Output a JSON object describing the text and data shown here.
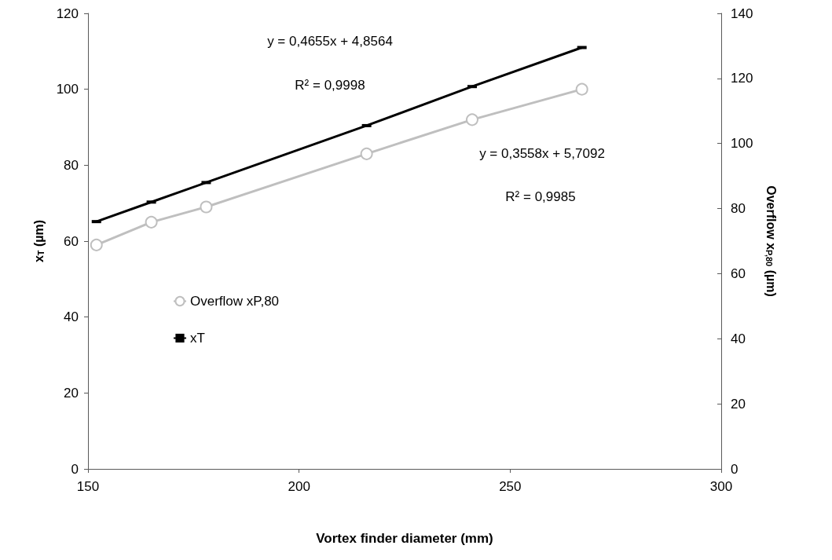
{
  "chart_data": {
    "type": "line",
    "xlabel": "Vortex finder diameter (mm)",
    "ylabel": "x$_{T}$ (µm)",
    "y2label": "Overflow x$_{P,80}$ (µm)",
    "x": [
      152,
      165,
      178,
      216,
      241,
      267
    ],
    "series": [
      {
        "name": "Overflow xP,80",
        "color": "#bfbfbf",
        "marker": "circle",
        "values": [
          59,
          65,
          69,
          83,
          92,
          100
        ]
      },
      {
        "name": "xT",
        "color": "#000000",
        "marker": "square",
        "axis": "y2",
        "values": [
          76,
          82,
          88,
          105.5,
          117.5,
          129.5
        ]
      }
    ],
    "xlim": [
      150,
      300
    ],
    "xticks": [
      150,
      200,
      250,
      300
    ],
    "ylim": [
      0,
      120
    ],
    "yticks": [
      0,
      20,
      40,
      60,
      80,
      100,
      120
    ],
    "y2lim": [
      0,
      140
    ],
    "y2ticks": [
      0,
      20,
      40,
      60,
      80,
      100,
      120,
      140
    ],
    "legend": "left",
    "grid": false,
    "annotations": [
      "y = 0,4655x + 4,8564",
      "R² = 0,9998",
      "y = 0,3558x + 5,7092",
      "R² = 0,9985"
    ]
  }
}
